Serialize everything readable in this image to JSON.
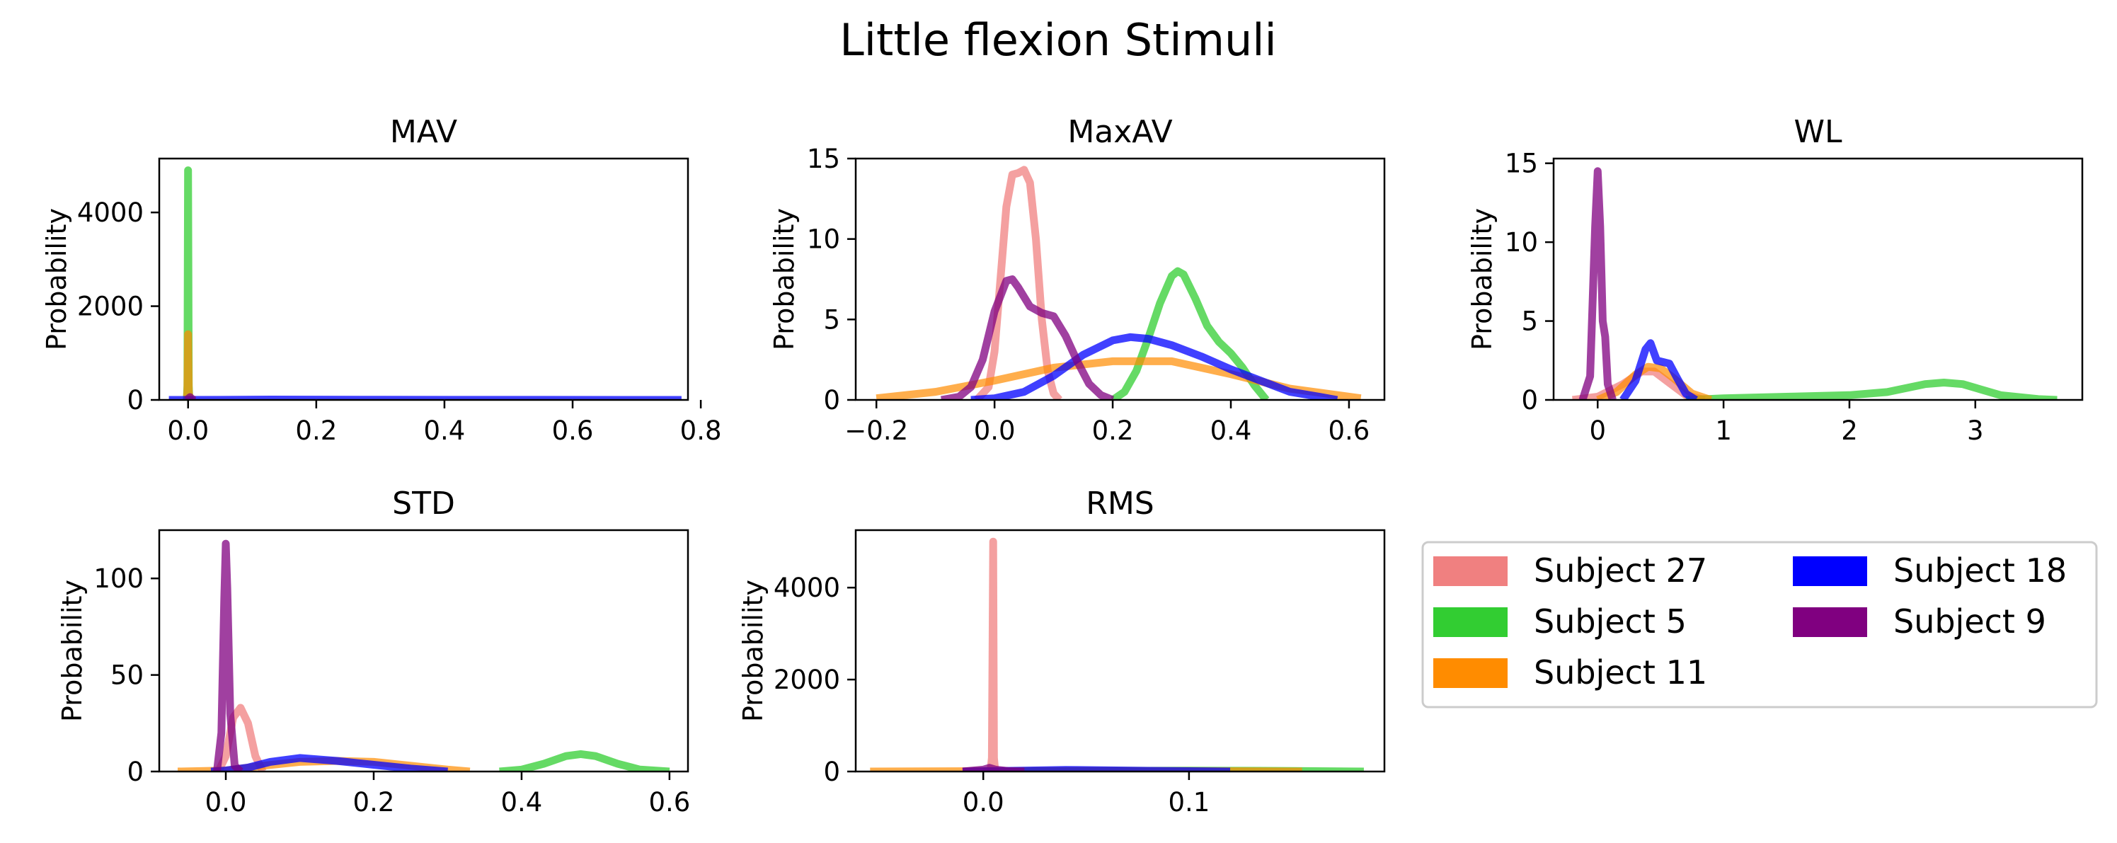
{
  "figure": {
    "title": "Little flexion Stimuli"
  },
  "legend": {
    "placement": "lower-right",
    "entries": [
      {
        "label": "Subject 27",
        "color": "#f08080"
      },
      {
        "label": "Subject 5",
        "color": "#32cd32"
      },
      {
        "label": "Subject 11",
        "color": "#ff8c00"
      },
      {
        "label": "Subject 18",
        "color": "#0000ff"
      },
      {
        "label": "Subject 9",
        "color": "#800080"
      }
    ]
  },
  "chart_data": [
    {
      "type": "line",
      "title": "MAV",
      "ylabel": "Probability",
      "xlim": [
        -0.045,
        0.78
      ],
      "ylim": [
        0,
        5150
      ],
      "xticks": [
        0.0,
        0.2,
        0.4,
        0.6,
        0.8
      ],
      "xtick_labels": [
        "0.0",
        "0.2",
        "0.4",
        "0.6",
        "0.8"
      ],
      "yticks": [
        0,
        2000,
        4000
      ],
      "ytick_labels": [
        "0",
        "2000",
        "4000"
      ],
      "series": [
        {
          "name": "Subject 27",
          "x": [
            -0.003,
            -0.001,
            0.002,
            0.004,
            0.006
          ],
          "y": [
            0,
            0,
            45,
            0,
            0
          ]
        },
        {
          "name": "Subject 5",
          "x": [
            -0.002,
            -0.001,
            0.0,
            0.001,
            0.002
          ],
          "y": [
            0,
            300,
            4900,
            300,
            0
          ]
        },
        {
          "name": "Subject 11",
          "x": [
            -0.002,
            -0.001,
            0.0,
            0.001,
            0.002
          ],
          "y": [
            0,
            200,
            1400,
            200,
            0
          ]
        },
        {
          "name": "Subject 18",
          "x": [
            -0.03,
            0.05,
            0.13,
            0.3,
            0.5,
            0.77
          ],
          "y": [
            0,
            2,
            8,
            3,
            1,
            0
          ]
        },
        {
          "name": "Subject 9",
          "x": [
            -0.004,
            -0.002,
            0.003,
            0.008,
            0.012
          ],
          "y": [
            0,
            0,
            60,
            0,
            0
          ]
        }
      ]
    },
    {
      "type": "line",
      "title": "MaxAV",
      "ylabel": "Probability",
      "xlim": [
        -0.235,
        0.66
      ],
      "ylim": [
        0,
        15
      ],
      "xticks": [
        -0.2,
        0.0,
        0.2,
        0.4,
        0.6
      ],
      "xtick_labels": [
        "−0.2",
        "0.0",
        "0.2",
        "0.4",
        "0.6"
      ],
      "yticks": [
        0,
        5,
        10,
        15
      ],
      "ytick_labels": [
        "0",
        "5",
        "10",
        "15"
      ],
      "series": [
        {
          "name": "Subject 27",
          "x": [
            -0.03,
            -0.01,
            0.0,
            0.01,
            0.02,
            0.03,
            0.04,
            0.05,
            0.06,
            0.07,
            0.08,
            0.09,
            0.1,
            0.11
          ],
          "y": [
            0,
            0.8,
            3.0,
            7.5,
            12.0,
            14.0,
            14.1,
            14.3,
            13.5,
            10.0,
            5.0,
            1.8,
            0.4,
            0
          ]
        },
        {
          "name": "Subject 5",
          "x": [
            0.2,
            0.22,
            0.24,
            0.26,
            0.28,
            0.3,
            0.31,
            0.32,
            0.34,
            0.36,
            0.38,
            0.4,
            0.42,
            0.44,
            0.46
          ],
          "y": [
            0,
            0.5,
            1.8,
            3.8,
            6.0,
            7.7,
            8.0,
            7.8,
            6.3,
            4.6,
            3.6,
            2.9,
            2.0,
            0.9,
            0
          ]
        },
        {
          "name": "Subject 11",
          "x": [
            -0.2,
            -0.1,
            0.0,
            0.1,
            0.2,
            0.3,
            0.4,
            0.5,
            0.62
          ],
          "y": [
            0.1,
            0.5,
            1.2,
            2.0,
            2.4,
            2.4,
            1.6,
            0.7,
            0.1
          ]
        },
        {
          "name": "Subject 18",
          "x": [
            -0.04,
            0.0,
            0.05,
            0.1,
            0.15,
            0.2,
            0.23,
            0.26,
            0.3,
            0.35,
            0.4,
            0.45,
            0.5,
            0.55,
            0.58
          ],
          "y": [
            0,
            0.1,
            0.5,
            1.5,
            2.8,
            3.7,
            3.9,
            3.8,
            3.4,
            2.7,
            1.9,
            1.2,
            0.5,
            0.2,
            0
          ]
        },
        {
          "name": "Subject 9",
          "x": [
            -0.09,
            -0.06,
            -0.04,
            -0.02,
            0.0,
            0.02,
            0.03,
            0.04,
            0.06,
            0.08,
            0.1,
            0.12,
            0.14,
            0.16,
            0.18,
            0.2
          ],
          "y": [
            0,
            0.2,
            0.8,
            2.5,
            5.5,
            7.4,
            7.5,
            7.0,
            5.8,
            5.4,
            5.2,
            4.0,
            2.4,
            1.0,
            0.3,
            0
          ]
        }
      ]
    },
    {
      "type": "line",
      "title": "WL",
      "ylabel": "Probability",
      "xlim": [
        -0.35,
        3.85
      ],
      "ylim": [
        0,
        15.3
      ],
      "xticks": [
        0,
        1,
        2,
        3
      ],
      "xtick_labels": [
        "0",
        "1",
        "2",
        "3"
      ],
      "yticks": [
        0,
        5,
        10,
        15
      ],
      "ytick_labels": [
        "0",
        "5",
        "10",
        "15"
      ],
      "series": [
        {
          "name": "Subject 27",
          "x": [
            -0.2,
            0.0,
            0.2,
            0.35,
            0.45,
            0.55,
            0.7,
            0.85
          ],
          "y": [
            0,
            0.2,
            1.0,
            1.8,
            1.8,
            1.2,
            0.3,
            0
          ]
        },
        {
          "name": "Subject 5",
          "x": [
            0.7,
            1.0,
            1.5,
            2.0,
            2.3,
            2.6,
            2.75,
            2.9,
            3.2,
            3.5,
            3.65
          ],
          "y": [
            0,
            0.1,
            0.2,
            0.3,
            0.5,
            1.0,
            1.1,
            1.0,
            0.3,
            0.05,
            0
          ]
        },
        {
          "name": "Subject 11",
          "x": [
            0.0,
            0.15,
            0.3,
            0.4,
            0.5,
            0.6,
            0.75,
            0.9
          ],
          "y": [
            0,
            0.5,
            1.6,
            2.1,
            2.0,
            1.4,
            0.4,
            0
          ]
        },
        {
          "name": "Subject 18",
          "x": [
            0.2,
            0.3,
            0.38,
            0.42,
            0.47,
            0.52,
            0.57,
            0.63,
            0.7,
            0.78
          ],
          "y": [
            0,
            1.2,
            3.2,
            3.6,
            2.5,
            2.4,
            2.3,
            1.4,
            0.4,
            0
          ]
        },
        {
          "name": "Subject 9",
          "x": [
            -0.12,
            -0.06,
            -0.02,
            0.0,
            0.02,
            0.04,
            0.06,
            0.08,
            0.12
          ],
          "y": [
            0,
            1.5,
            11.0,
            14.5,
            11.0,
            5.0,
            4.0,
            1.0,
            0
          ]
        }
      ]
    },
    {
      "type": "line",
      "title": "STD",
      "ylabel": "Probability",
      "xlim": [
        -0.09,
        0.625
      ],
      "ylim": [
        0,
        125
      ],
      "xticks": [
        0.0,
        0.2,
        0.4,
        0.6
      ],
      "xtick_labels": [
        "0.0",
        "0.2",
        "0.4",
        "0.6"
      ],
      "yticks": [
        0,
        50,
        100
      ],
      "ytick_labels": [
        "0",
        "50",
        "100"
      ],
      "series": [
        {
          "name": "Subject 27",
          "x": [
            -0.01,
            0.0,
            0.01,
            0.02,
            0.03,
            0.04,
            0.05
          ],
          "y": [
            0,
            8,
            28,
            33,
            25,
            8,
            0
          ]
        },
        {
          "name": "Subject 5",
          "x": [
            0.37,
            0.4,
            0.43,
            0.46,
            0.48,
            0.5,
            0.53,
            0.56,
            0.6
          ],
          "y": [
            0,
            1,
            4,
            8,
            9,
            8,
            4,
            1,
            0
          ]
        },
        {
          "name": "Subject 11",
          "x": [
            -0.065,
            0.0,
            0.05,
            0.1,
            0.15,
            0.2,
            0.25,
            0.3,
            0.33
          ],
          "y": [
            0,
            0.5,
            3,
            5,
            5.5,
            5,
            3,
            1,
            0
          ]
        },
        {
          "name": "Subject 18",
          "x": [
            -0.02,
            0.0,
            0.03,
            0.06,
            0.1,
            0.15,
            0.2,
            0.25,
            0.3
          ],
          "y": [
            0,
            0.5,
            2,
            5,
            7,
            5.5,
            3.5,
            1.5,
            0
          ]
        },
        {
          "name": "Subject 9",
          "x": [
            -0.012,
            -0.006,
            -0.002,
            0.0,
            0.002,
            0.006,
            0.012,
            0.02
          ],
          "y": [
            0,
            20,
            90,
            118,
            95,
            30,
            3,
            0
          ]
        }
      ]
    },
    {
      "type": "line",
      "title": "RMS",
      "ylabel": "Probability",
      "xlim": [
        -0.062,
        0.195
      ],
      "ylim": [
        0,
        5250
      ],
      "xticks": [
        0.0,
        0.1
      ],
      "xtick_labels": [
        "0.0",
        "0.1"
      ],
      "yticks": [
        0,
        2000,
        4000
      ],
      "ytick_labels": [
        "0",
        "2000",
        "4000"
      ],
      "series": [
        {
          "name": "Subject 27",
          "x": [
            0.0035,
            0.0042,
            0.0048,
            0.0052,
            0.0058
          ],
          "y": [
            0,
            300,
            5000,
            300,
            0
          ]
        },
        {
          "name": "Subject 5",
          "x": [
            0.0,
            0.05,
            0.1,
            0.15,
            0.185
          ],
          "y": [
            0,
            10,
            20,
            12,
            0
          ]
        },
        {
          "name": "Subject 11",
          "x": [
            -0.055,
            0.0,
            0.05,
            0.1,
            0.155
          ],
          "y": [
            0,
            8,
            15,
            10,
            0
          ]
        },
        {
          "name": "Subject 18",
          "x": [
            -0.01,
            0.02,
            0.04,
            0.08,
            0.12
          ],
          "y": [
            0,
            20,
            35,
            15,
            0
          ]
        },
        {
          "name": "Subject 9",
          "x": [
            -0.01,
            0.0,
            0.003,
            0.006,
            0.012,
            0.02
          ],
          "y": [
            0,
            40,
            80,
            40,
            10,
            0
          ]
        }
      ]
    }
  ]
}
